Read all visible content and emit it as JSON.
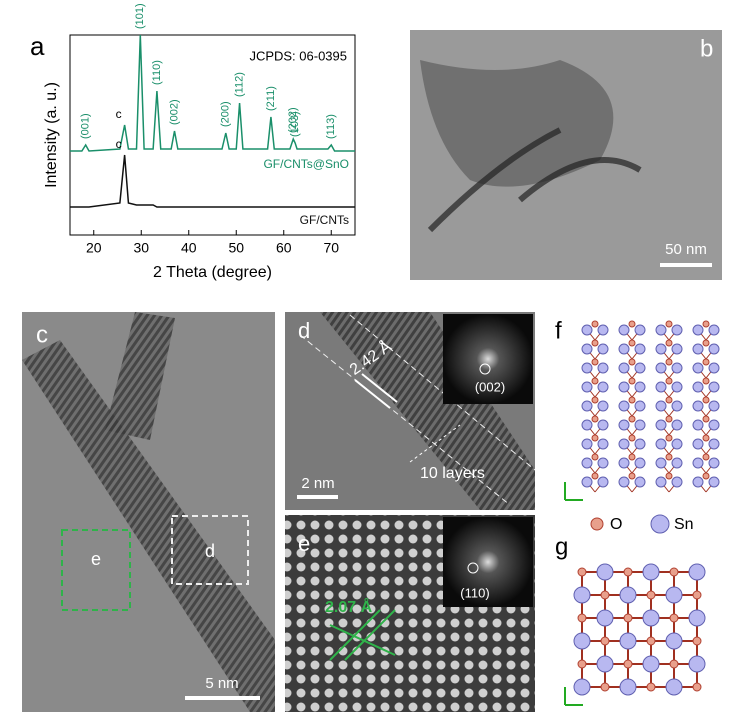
{
  "chart_data": {
    "type": "line",
    "x_label": "2 Theta (degree)",
    "y_label": "Intensity (a. u.)",
    "note": "JCPDS: 06-0395",
    "x": [
      15,
      17.5,
      18.3,
      19,
      25.5,
      26.5,
      27.3,
      29,
      29.8,
      30.6,
      32.5,
      33.3,
      34.1,
      36.3,
      37,
      37.7,
      47,
      47.8,
      48.5,
      50,
      50.7,
      51.4,
      56.6,
      57.3,
      58,
      61.3,
      62,
      62.4,
      62.8,
      69.3,
      70,
      70.7,
      75
    ],
    "series": [
      {
        "name": "GF/CNTs@SnO",
        "color": "#1a8f6a",
        "values": [
          42,
          42,
          45,
          42,
          43,
          55,
          43,
          43,
          100,
          43,
          43,
          72,
          43,
          43,
          52,
          43,
          43,
          51,
          43,
          43,
          66,
          43,
          43,
          59,
          43,
          43,
          48,
          46,
          43,
          43,
          45,
          42,
          42
        ]
      },
      {
        "name": "GF/CNTs",
        "color": "#111111",
        "values": [
          14,
          14,
          14,
          14,
          16,
          40,
          16,
          15,
          15,
          15,
          15,
          14,
          14,
          14,
          14,
          14,
          14,
          14,
          14,
          14,
          14,
          14,
          14,
          14,
          14,
          14,
          14,
          14,
          14,
          14,
          14,
          14,
          14
        ]
      }
    ],
    "annotations": [
      {
        "text": "(001)",
        "x": 18.3,
        "series": 0
      },
      {
        "text": "c",
        "x": 26.5,
        "series": 0
      },
      {
        "text": "(101)",
        "x": 29.8,
        "series": 0
      },
      {
        "text": "(110)",
        "x": 33.3,
        "series": 0
      },
      {
        "text": "(002)",
        "x": 37,
        "series": 0
      },
      {
        "text": "(200)",
        "x": 47.8,
        "series": 0
      },
      {
        "text": "(112)",
        "x": 50.7,
        "series": 0
      },
      {
        "text": "(211)",
        "x": 57.3,
        "series": 0
      },
      {
        "text": "(202)",
        "x": 62,
        "series": 0
      },
      {
        "text": "(103)",
        "x": 62.4,
        "series": 0
      },
      {
        "text": "(113)",
        "x": 70,
        "series": 0
      },
      {
        "text": "c",
        "x": 26.5,
        "series": 1
      }
    ],
    "xlim": [
      15,
      75
    ],
    "xticks": [
      20,
      30,
      40,
      50,
      60,
      70
    ],
    "ylim": [
      0,
      100
    ]
  },
  "panels": {
    "a": {
      "label": "a"
    },
    "b": {
      "label": "b",
      "scale": "50 nm"
    },
    "c": {
      "label": "c",
      "box_e": "e",
      "box_d": "d",
      "scale": "5 nm"
    },
    "d": {
      "label": "d",
      "spacing": "2.42 Å",
      "fft_spot": "(002)",
      "layers": "10 layers",
      "scale": "2 nm"
    },
    "e": {
      "label": "e",
      "spacing": "2.07 Å",
      "fft_spot": "(110)"
    },
    "f": {
      "label": "f",
      "legend_o": "O",
      "legend_sn": "Sn"
    },
    "g": {
      "label": "g"
    }
  }
}
